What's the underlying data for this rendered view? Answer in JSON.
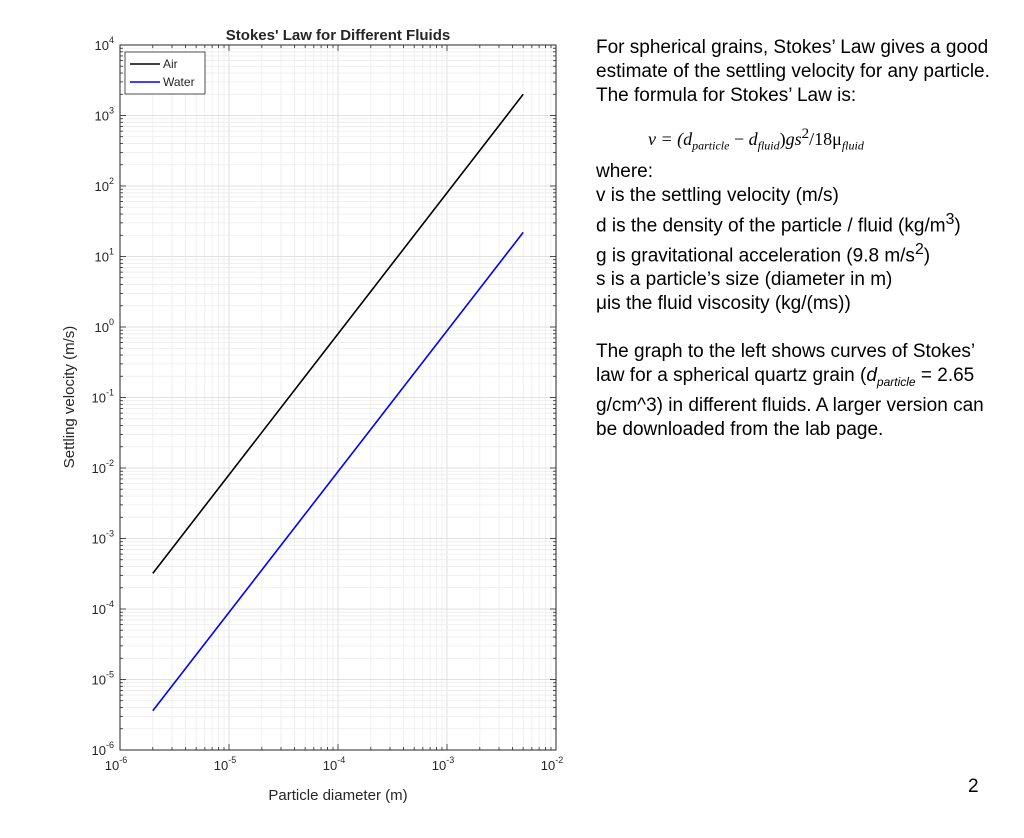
{
  "chart_data": {
    "type": "line",
    "title": "Stokes' Law for Different Fluids",
    "xlabel": "Particle diameter (m)",
    "ylabel": "Settling velocity (m/s)",
    "xscale": "log",
    "yscale": "log",
    "xlim": [
      1e-06,
      0.01
    ],
    "ylim": [
      1e-06,
      10000.0
    ],
    "x_ticks": [
      {
        "base": "10",
        "exp": "-6"
      },
      {
        "base": "10",
        "exp": "-5"
      },
      {
        "base": "10",
        "exp": "-4"
      },
      {
        "base": "10",
        "exp": "-3"
      },
      {
        "base": "10",
        "exp": "-2"
      }
    ],
    "y_ticks": [
      {
        "base": "10",
        "exp": "-6"
      },
      {
        "base": "10",
        "exp": "-5"
      },
      {
        "base": "10",
        "exp": "-4"
      },
      {
        "base": "10",
        "exp": "-3"
      },
      {
        "base": "10",
        "exp": "-2"
      },
      {
        "base": "10",
        "exp": "-1"
      },
      {
        "base": "10",
        "exp": "0"
      },
      {
        "base": "10",
        "exp": "1"
      },
      {
        "base": "10",
        "exp": "2"
      },
      {
        "base": "10",
        "exp": "3"
      },
      {
        "base": "10",
        "exp": "4"
      }
    ],
    "grid": true,
    "minor_grid": true,
    "legend_position": "top-left",
    "series": [
      {
        "name": "Air",
        "color": "#000000",
        "x": [
          2e-06,
          0.005
        ],
        "y": [
          0.00032,
          2000
        ]
      },
      {
        "name": "Water",
        "color": "#0000ff",
        "x": [
          2e-06,
          0.005
        ],
        "y": [
          3.6e-06,
          22
        ]
      }
    ]
  },
  "text": {
    "intro": "For spherical grains, Stokes’ Law gives a good estimate of the settling velocity for any particle. The formula for Stokes’ Law is:",
    "formula": {
      "lhs": "v = (",
      "d1": "d",
      "sub1": "particle",
      "minus": " − ",
      "d2": "d",
      "sub2": "fluid",
      "mid": ")",
      "gs": "gs",
      "sq": "2",
      "div": "/18μ",
      "sub3": "fluid"
    },
    "where": "where:",
    "def_v": " v is the settling velocity (m/s)",
    "def_d": "d is the density of the particle / fluid (kg/m",
    "def_d_exp": "3",
    "def_d_end": ")",
    "def_g": "g is gravitational acceleration (9.8 m/s",
    "def_g_exp": "2",
    "def_g_end": ")",
    "def_s": "s is a particle’s size (diameter in m)",
    "def_mu_sym": " μ",
    "def_mu": "is the fluid viscosity (kg/(ms))",
    "graph_a": "The graph to the left shows curves of Stokes’ law for a spherical quartz grain (",
    "graph_d": "d",
    "graph_sub": "particle",
    "graph_b": " = 2.65 g/cm^3) in different fluids. A larger version can be downloaded from the lab page."
  },
  "page_number": "2"
}
